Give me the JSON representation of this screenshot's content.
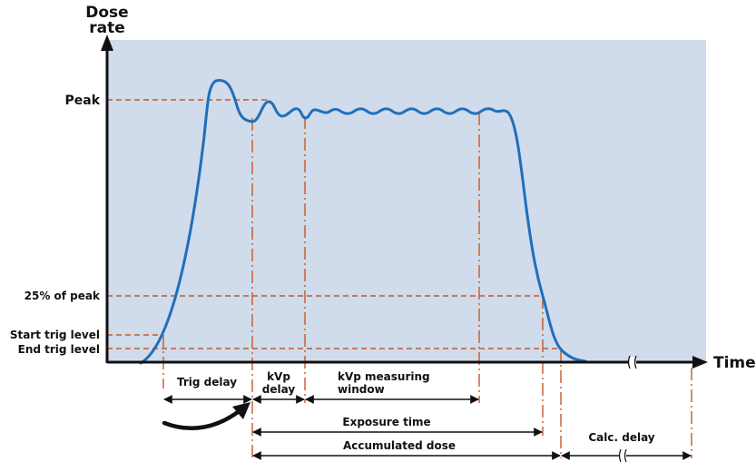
{
  "axis": {
    "y_title_line1": "Dose",
    "y_title_line2": "rate",
    "x_title": "Time"
  },
  "levels": {
    "peak": "Peak",
    "quarter_peak": "25% of peak",
    "start_trig": "Start trig level",
    "end_trig": "End trig level"
  },
  "intervals": {
    "trig_delay": "Trig delay",
    "kvp_delay_line1": "kVp",
    "kvp_delay_line2": "delay",
    "kvp_window_line1": "kVp measuring",
    "kvp_window_line2": "window",
    "exposure_time": "Exposure time",
    "accumulated_dose": "Accumulated dose",
    "calc_delay": "Calc. delay"
  },
  "colors": {
    "plot_background": "#d0dbeb",
    "curve": "#1f6fba",
    "guide": "#c45a26",
    "axis": "#111111"
  }
}
